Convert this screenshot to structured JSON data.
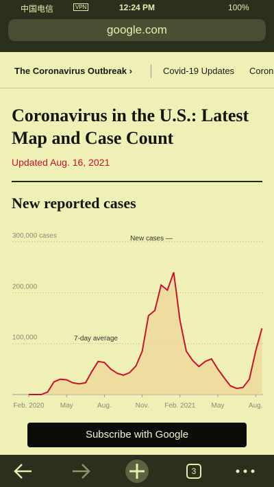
{
  "status_bar": {
    "carrier": "中国电信",
    "vpn": "VPN",
    "time": "12:24 PM",
    "battery": "100%"
  },
  "url_bar": {
    "url": "google.com"
  },
  "nav": {
    "items": [
      "The Coronavirus Outbreak ›",
      "Covid-19 Updates",
      "Coron"
    ]
  },
  "article": {
    "headline": "Coronavirus in the U.S.: Latest Map and Case Count",
    "updated": "Updated Aug. 16, 2021",
    "section": "New reported cases"
  },
  "chart_data": {
    "type": "line",
    "categories": [
      "Feb. 2020",
      null,
      null,
      null,
      null,
      null,
      "May",
      null,
      null,
      null,
      null,
      null,
      "Aug.",
      null,
      null,
      null,
      null,
      null,
      "Nov.",
      null,
      null,
      null,
      null,
      null,
      "Feb. 2021",
      null,
      null,
      null,
      null,
      null,
      "May",
      null,
      null,
      null,
      null,
      null,
      "Aug.",
      null
    ],
    "series": [
      {
        "name": "7-day average",
        "color": "#c8102e",
        "values": [
          0,
          0,
          0,
          5000,
          25000,
          30000,
          29000,
          23000,
          21000,
          23000,
          45000,
          65000,
          63000,
          50000,
          42000,
          38000,
          43000,
          56000,
          85000,
          155000,
          165000,
          215000,
          205000,
          240000,
          145000,
          85000,
          67000,
          55000,
          65000,
          70000,
          50000,
          33000,
          17000,
          12000,
          14000,
          30000,
          85000,
          130000
        ]
      }
    ],
    "annotations": [
      "7-day average",
      "New cases —"
    ],
    "ylim": [
      0,
      300000
    ],
    "yticks": [
      {
        "value": 100000,
        "label": "100,000"
      },
      {
        "value": 200000,
        "label": "200,000"
      },
      {
        "value": 300000,
        "label": "300,000 cases"
      }
    ],
    "grid": true,
    "area_color": "#efd89a"
  },
  "subscribe_button": {
    "label": "Subscribe with Google"
  },
  "toolbar": {
    "tab_count": "3"
  }
}
